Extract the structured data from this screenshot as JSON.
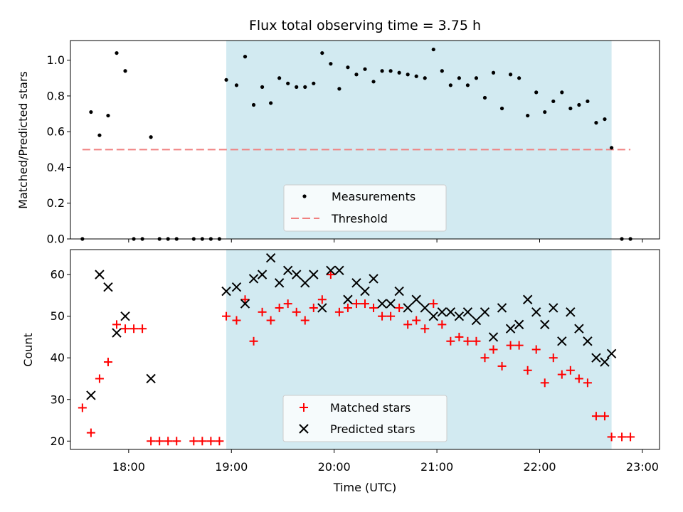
{
  "colors": {
    "observing_window": "#add8e6",
    "measurements": "#000000",
    "threshold": "#f08080",
    "matched": "#ff0000",
    "predicted": "#000000"
  },
  "chart_data": [
    {
      "type": "scatter",
      "title": "Flux total observing time = 3.75 h",
      "ylabel": "Matched/Predicted stars",
      "xlim": [
        "17:26",
        "23:10"
      ],
      "ylim": [
        0,
        1.11
      ],
      "yticks": [
        "0.0",
        "0.2",
        "0.4",
        "0.6",
        "0.8",
        "1.0"
      ],
      "observing_window": [
        "18:57",
        "22:42"
      ],
      "threshold": 0.5,
      "threshold_range": [
        "17:33",
        "22:53"
      ],
      "legend": {
        "position": "lower center",
        "entries": [
          "Measurements",
          "Threshold"
        ]
      },
      "series": [
        {
          "name": "Measurements",
          "points": [
            [
              "17:33",
              0
            ],
            [
              "17:38",
              0.71
            ],
            [
              "17:43",
              0.58
            ],
            [
              "17:48",
              0.69
            ],
            [
              "17:53",
              1.04
            ],
            [
              "17:58",
              0.94
            ],
            [
              "18:03",
              0
            ],
            [
              "18:08",
              0
            ],
            [
              "18:13",
              0.57
            ],
            [
              "18:18",
              0
            ],
            [
              "18:23",
              0
            ],
            [
              "18:28",
              0
            ],
            [
              "18:38",
              0
            ],
            [
              "18:43",
              0
            ],
            [
              "18:48",
              0
            ],
            [
              "18:53",
              0
            ],
            [
              "18:57",
              0.89
            ],
            [
              "19:03",
              0.86
            ],
            [
              "19:08",
              1.02
            ],
            [
              "19:13",
              0.75
            ],
            [
              "19:18",
              0.85
            ],
            [
              "19:23",
              0.76
            ],
            [
              "19:28",
              0.9
            ],
            [
              "19:33",
              0.87
            ],
            [
              "19:38",
              0.85
            ],
            [
              "19:43",
              0.85
            ],
            [
              "19:48",
              0.87
            ],
            [
              "19:53",
              1.04
            ],
            [
              "19:58",
              0.98
            ],
            [
              "20:03",
              0.84
            ],
            [
              "20:08",
              0.96
            ],
            [
              "20:13",
              0.92
            ],
            [
              "20:18",
              0.95
            ],
            [
              "20:23",
              0.88
            ],
            [
              "20:28",
              0.94
            ],
            [
              "20:33",
              0.94
            ],
            [
              "20:38",
              0.93
            ],
            [
              "20:43",
              0.92
            ],
            [
              "20:48",
              0.91
            ],
            [
              "20:53",
              0.9
            ],
            [
              "20:58",
              1.06
            ],
            [
              "21:03",
              0.94
            ],
            [
              "21:08",
              0.86
            ],
            [
              "21:13",
              0.9
            ],
            [
              "21:18",
              0.86
            ],
            [
              "21:23",
              0.9
            ],
            [
              "21:28",
              0.79
            ],
            [
              "21:33",
              0.93
            ],
            [
              "21:38",
              0.73
            ],
            [
              "21:43",
              0.92
            ],
            [
              "21:48",
              0.9
            ],
            [
              "21:53",
              0.69
            ],
            [
              "21:58",
              0.82
            ],
            [
              "22:03",
              0.71
            ],
            [
              "22:08",
              0.77
            ],
            [
              "22:13",
              0.82
            ],
            [
              "22:18",
              0.73
            ],
            [
              "22:23",
              0.75
            ],
            [
              "22:28",
              0.77
            ],
            [
              "22:33",
              0.65
            ],
            [
              "22:38",
              0.67
            ],
            [
              "22:42",
              0.51
            ],
            [
              "22:48",
              0
            ],
            [
              "22:53",
              0
            ]
          ]
        }
      ]
    },
    {
      "type": "scatter",
      "xlabel": "Time (UTC)",
      "ylabel": "Count",
      "xlim": [
        "17:26",
        "23:10"
      ],
      "ylim": [
        18,
        66
      ],
      "xticks": [
        "18:00",
        "19:00",
        "20:00",
        "21:00",
        "22:00",
        "23:00"
      ],
      "yticks": [
        "20",
        "30",
        "40",
        "50",
        "60"
      ],
      "observing_window": [
        "18:57",
        "22:42"
      ],
      "legend": {
        "position": "lower center",
        "entries": [
          "Matched stars",
          "Predicted stars"
        ]
      },
      "series": [
        {
          "name": "Matched stars",
          "points": [
            [
              "17:33",
              28
            ],
            [
              "17:38",
              22
            ],
            [
              "17:43",
              35
            ],
            [
              "17:48",
              39
            ],
            [
              "17:53",
              48
            ],
            [
              "17:58",
              47
            ],
            [
              "18:03",
              47
            ],
            [
              "18:08",
              47
            ],
            [
              "18:13",
              20
            ],
            [
              "18:18",
              20
            ],
            [
              "18:23",
              20
            ],
            [
              "18:28",
              20
            ],
            [
              "18:38",
              20
            ],
            [
              "18:43",
              20
            ],
            [
              "18:48",
              20
            ],
            [
              "18:53",
              20
            ],
            [
              "18:57",
              50
            ],
            [
              "19:03",
              49
            ],
            [
              "19:08",
              54
            ],
            [
              "19:13",
              44
            ],
            [
              "19:18",
              51
            ],
            [
              "19:23",
              49
            ],
            [
              "19:28",
              52
            ],
            [
              "19:33",
              53
            ],
            [
              "19:38",
              51
            ],
            [
              "19:43",
              49
            ],
            [
              "19:48",
              52
            ],
            [
              "19:53",
              54
            ],
            [
              "19:58",
              60
            ],
            [
              "20:03",
              51
            ],
            [
              "20:08",
              52
            ],
            [
              "20:13",
              53
            ],
            [
              "20:18",
              53
            ],
            [
              "20:23",
              52
            ],
            [
              "20:28",
              50
            ],
            [
              "20:33",
              50
            ],
            [
              "20:38",
              52
            ],
            [
              "20:43",
              48
            ],
            [
              "20:48",
              49
            ],
            [
              "20:53",
              47
            ],
            [
              "20:58",
              53
            ],
            [
              "21:03",
              48
            ],
            [
              "21:08",
              44
            ],
            [
              "21:13",
              45
            ],
            [
              "21:18",
              44
            ],
            [
              "21:23",
              44
            ],
            [
              "21:28",
              40
            ],
            [
              "21:33",
              42
            ],
            [
              "21:38",
              38
            ],
            [
              "21:43",
              43
            ],
            [
              "21:48",
              43
            ],
            [
              "21:53",
              37
            ],
            [
              "21:58",
              42
            ],
            [
              "22:03",
              34
            ],
            [
              "22:08",
              40
            ],
            [
              "22:13",
              36
            ],
            [
              "22:18",
              37
            ],
            [
              "22:23",
              35
            ],
            [
              "22:28",
              34
            ],
            [
              "22:33",
              26
            ],
            [
              "22:38",
              26
            ],
            [
              "22:42",
              21
            ],
            [
              "22:48",
              21
            ],
            [
              "22:53",
              21
            ]
          ]
        },
        {
          "name": "Predicted stars",
          "points": [
            [
              "17:38",
              31
            ],
            [
              "17:43",
              60
            ],
            [
              "17:48",
              57
            ],
            [
              "17:53",
              46
            ],
            [
              "17:58",
              50
            ],
            [
              "18:13",
              35
            ],
            [
              "18:57",
              56
            ],
            [
              "19:03",
              57
            ],
            [
              "19:08",
              53
            ],
            [
              "19:13",
              59
            ],
            [
              "19:18",
              60
            ],
            [
              "19:23",
              64
            ],
            [
              "19:28",
              58
            ],
            [
              "19:33",
              61
            ],
            [
              "19:38",
              60
            ],
            [
              "19:43",
              58
            ],
            [
              "19:48",
              60
            ],
            [
              "19:53",
              52
            ],
            [
              "19:58",
              61
            ],
            [
              "20:03",
              61
            ],
            [
              "20:08",
              54
            ],
            [
              "20:13",
              58
            ],
            [
              "20:18",
              56
            ],
            [
              "20:23",
              59
            ],
            [
              "20:28",
              53
            ],
            [
              "20:33",
              53
            ],
            [
              "20:38",
              56
            ],
            [
              "20:43",
              52
            ],
            [
              "20:48",
              54
            ],
            [
              "20:53",
              52
            ],
            [
              "20:58",
              50
            ],
            [
              "21:03",
              51
            ],
            [
              "21:08",
              51
            ],
            [
              "21:13",
              50
            ],
            [
              "21:18",
              51
            ],
            [
              "21:23",
              49
            ],
            [
              "21:28",
              51
            ],
            [
              "21:33",
              45
            ],
            [
              "21:38",
              52
            ],
            [
              "21:43",
              47
            ],
            [
              "21:48",
              48
            ],
            [
              "21:53",
              54
            ],
            [
              "21:58",
              51
            ],
            [
              "22:03",
              48
            ],
            [
              "22:08",
              52
            ],
            [
              "22:13",
              44
            ],
            [
              "22:18",
              51
            ],
            [
              "22:23",
              47
            ],
            [
              "22:28",
              44
            ],
            [
              "22:33",
              40
            ],
            [
              "22:38",
              39
            ],
            [
              "22:42",
              41
            ]
          ]
        }
      ]
    }
  ]
}
